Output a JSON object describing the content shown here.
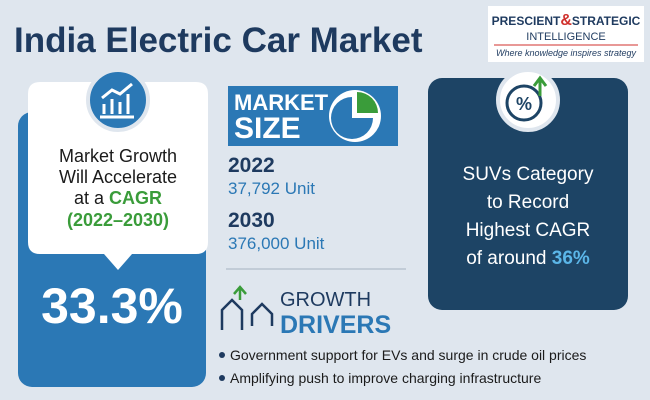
{
  "title": "India Electric Car Market",
  "logo": {
    "name_part1": "PRESCIENT",
    "amp": "&",
    "name_part2": "STRATEGIC",
    "name_part3": "INTELLIGENCE",
    "tagline": "Where knowledge inspires strategy"
  },
  "growth": {
    "lines": [
      "Market Growth",
      "Will Accelerate"
    ],
    "prefix": "at a",
    "highlight": "CAGR",
    "period": "(2022–2030)",
    "value": "33.3%"
  },
  "market_size": {
    "label_1": "MARKET",
    "label_2": "SIZE",
    "entries": [
      {
        "year": "2022",
        "value": "37,792 Unit"
      },
      {
        "year": "2030",
        "value": "376,000 Unit"
      }
    ]
  },
  "segment": {
    "lines": [
      "SUVs Category",
      "to Record",
      "Highest CAGR"
    ],
    "prefix": "of around",
    "highlight": "36%"
  },
  "drivers": {
    "label_1": "GROWTH",
    "label_2": "DRIVERS",
    "items": [
      "Government support for EVs and surge in crude oil prices",
      "Amplifying push to improve charging infrastructure"
    ]
  }
}
